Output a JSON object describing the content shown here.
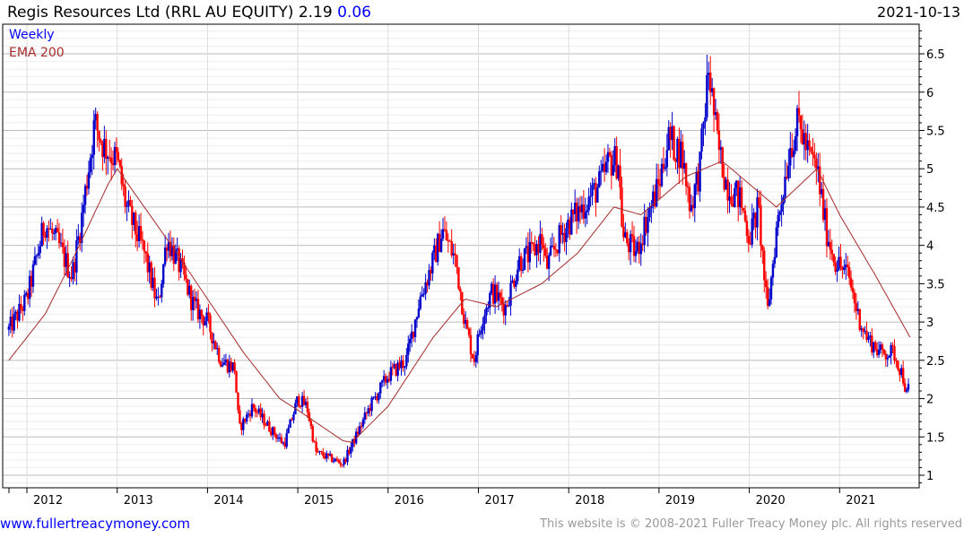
{
  "header": {
    "title": "Regis Resources Ltd (RRL AU EQUITY) 2.19",
    "change": "0.06",
    "date": "2021-10-13"
  },
  "legend": {
    "series": "Weekly",
    "ema": "EMA 200"
  },
  "footer": {
    "site": "www.fullertreacymoney.com",
    "copyright": "This website is © 2008-2021 Fuller Treacy Money plc. All rights reserved"
  },
  "colors": {
    "up": "#0000cc",
    "down": "#ff0000",
    "ema": "#a52a2a"
  },
  "chart_data": {
    "type": "candlestick",
    "title": "Regis Resources Ltd (RRL AU EQUITY)",
    "frequency": "Weekly",
    "last": 2.19,
    "change": 0.06,
    "xlim": [
      2011.78,
      2021.82
    ],
    "ylim": [
      0.88,
      6.95
    ],
    "x_ticks": [
      "2012",
      "2013",
      "2014",
      "2015",
      "2016",
      "2017",
      "2018",
      "2019",
      "2020",
      "2021"
    ],
    "y_ticks": [
      "1",
      "1.5",
      "2",
      "2.5",
      "3",
      "3.5",
      "4",
      "4.5",
      "5",
      "5.5",
      "6",
      "6.5"
    ],
    "grid": true,
    "price_path": [
      [
        2011.8,
        2.9
      ],
      [
        2012.0,
        3.3
      ],
      [
        2012.2,
        4.3
      ],
      [
        2012.35,
        4.0
      ],
      [
        2012.5,
        3.6
      ],
      [
        2012.6,
        4.3
      ],
      [
        2012.75,
        5.6
      ],
      [
        2012.85,
        5.3
      ],
      [
        2013.0,
        5.1
      ],
      [
        2013.1,
        4.5
      ],
      [
        2013.3,
        3.9
      ],
      [
        2013.45,
        3.2
      ],
      [
        2013.55,
        4.1
      ],
      [
        2013.7,
        3.7
      ],
      [
        2013.85,
        3.2
      ],
      [
        2014.0,
        3.0
      ],
      [
        2014.15,
        2.5
      ],
      [
        2014.3,
        2.4
      ],
      [
        2014.35,
        1.6
      ],
      [
        2014.5,
        1.9
      ],
      [
        2014.7,
        1.6
      ],
      [
        2014.85,
        1.4
      ],
      [
        2015.0,
        2.0
      ],
      [
        2015.1,
        1.9
      ],
      [
        2015.2,
        1.3
      ],
      [
        2015.4,
        1.2
      ],
      [
        2015.5,
        1.15
      ],
      [
        2015.6,
        1.4
      ],
      [
        2015.8,
        1.9
      ],
      [
        2016.0,
        2.3
      ],
      [
        2016.2,
        2.5
      ],
      [
        2016.35,
        3.3
      ],
      [
        2016.5,
        3.8
      ],
      [
        2016.6,
        4.2
      ],
      [
        2016.75,
        3.8
      ],
      [
        2016.85,
        3.0
      ],
      [
        2016.95,
        2.5
      ],
      [
        2017.05,
        3.1
      ],
      [
        2017.15,
        3.4
      ],
      [
        2017.3,
        3.2
      ],
      [
        2017.45,
        3.8
      ],
      [
        2017.6,
        3.9
      ],
      [
        2017.7,
        4.1
      ],
      [
        2017.75,
        3.7
      ],
      [
        2017.9,
        4.1
      ],
      [
        2018.0,
        4.3
      ],
      [
        2018.15,
        4.5
      ],
      [
        2018.35,
        4.8
      ],
      [
        2018.45,
        5.1
      ],
      [
        2018.55,
        5.1
      ],
      [
        2018.6,
        4.1
      ],
      [
        2018.75,
        3.9
      ],
      [
        2018.85,
        4.3
      ],
      [
        2019.0,
        4.8
      ],
      [
        2019.1,
        5.4
      ],
      [
        2019.25,
        5.2
      ],
      [
        2019.35,
        4.5
      ],
      [
        2019.45,
        5.0
      ],
      [
        2019.55,
        6.3
      ],
      [
        2019.65,
        5.3
      ],
      [
        2019.75,
        4.8
      ],
      [
        2019.9,
        4.6
      ],
      [
        2020.0,
        4.1
      ],
      [
        2020.1,
        4.5
      ],
      [
        2020.2,
        3.1
      ],
      [
        2020.3,
        4.2
      ],
      [
        2020.45,
        5.3
      ],
      [
        2020.55,
        5.6
      ],
      [
        2020.65,
        5.2
      ],
      [
        2020.75,
        5.0
      ],
      [
        2020.85,
        4.2
      ],
      [
        2020.95,
        3.8
      ],
      [
        2021.1,
        3.6
      ],
      [
        2021.2,
        3.1
      ],
      [
        2021.3,
        2.8
      ],
      [
        2021.45,
        2.6
      ],
      [
        2021.6,
        2.6
      ],
      [
        2021.7,
        2.3
      ],
      [
        2021.75,
        2.0
      ],
      [
        2021.78,
        2.19
      ]
    ],
    "ema200": [
      [
        2011.8,
        2.5
      ],
      [
        2012.2,
        3.1
      ],
      [
        2012.5,
        3.8
      ],
      [
        2012.9,
        4.8
      ],
      [
        2013.0,
        5.0
      ],
      [
        2013.3,
        4.5
      ],
      [
        2013.6,
        4.0
      ],
      [
        2014.0,
        3.3
      ],
      [
        2014.4,
        2.6
      ],
      [
        2014.8,
        2.0
      ],
      [
        2015.0,
        1.85
      ],
      [
        2015.5,
        1.45
      ],
      [
        2015.6,
        1.43
      ],
      [
        2016.0,
        1.9
      ],
      [
        2016.5,
        2.8
      ],
      [
        2016.85,
        3.3
      ],
      [
        2017.2,
        3.2
      ],
      [
        2017.7,
        3.5
      ],
      [
        2018.1,
        3.9
      ],
      [
        2018.5,
        4.5
      ],
      [
        2018.8,
        4.4
      ],
      [
        2019.3,
        4.9
      ],
      [
        2019.7,
        5.1
      ],
      [
        2020.0,
        4.8
      ],
      [
        2020.3,
        4.5
      ],
      [
        2020.75,
        5.0
      ],
      [
        2021.0,
        4.4
      ],
      [
        2021.4,
        3.6
      ],
      [
        2021.79,
        2.78
      ]
    ]
  }
}
